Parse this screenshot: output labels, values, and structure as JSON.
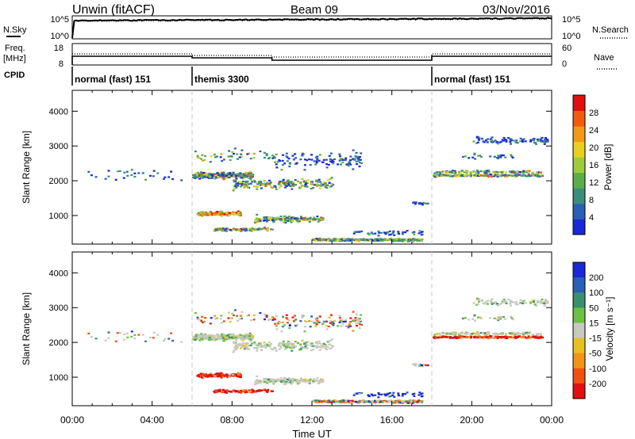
{
  "header": {
    "radar": "Unwin (fitACF)",
    "beam": "Beam 09",
    "date": "03/Nov/2016"
  },
  "noise_panel": {
    "left_label": "N.Sky",
    "right_label": "N.Search",
    "ticks_left": [
      "10^5",
      "10^0"
    ],
    "ticks_right": [
      "10^5",
      "10^0"
    ]
  },
  "freq_panel": {
    "left_label_line1": "Freq.",
    "left_label_line2": "[MHz]",
    "right_label": "Nave",
    "ticks_left": [
      "18",
      "8"
    ],
    "ticks_right": [
      "60",
      "0"
    ]
  },
  "cpid": {
    "label": "CPID",
    "segments": [
      {
        "name": "normal (fast) 151",
        "start": 0,
        "end": 6
      },
      {
        "name": "themis 3300",
        "start": 6,
        "end": 18
      },
      {
        "name": "normal (fast) 151",
        "start": 18,
        "end": 24
      }
    ]
  },
  "colors": {
    "power": [
      "#1a28d8",
      "#2a5fb4",
      "#3a8f7a",
      "#5aae4a",
      "#9ccc3c",
      "#e8d020",
      "#f29a18",
      "#f25a10",
      "#e01010"
    ],
    "velocity": [
      "#1a28d8",
      "#2a5fb4",
      "#3a8f6e",
      "#6cc043",
      "#c8c8c0",
      "#e8c020",
      "#f29418",
      "#f05010",
      "#e01010"
    ]
  },
  "chart_data": [
    {
      "type": "heatmap",
      "name": "power",
      "ylabel": "Slant Range [km]",
      "ylim": [
        180,
        4600
      ],
      "xlim": [
        0,
        24
      ],
      "yticks": [
        "1000",
        "2000",
        "3000",
        "4000"
      ],
      "colorbar_label": "Power [dB]",
      "colorbar_ticks": [
        "4",
        "8",
        "12",
        "16",
        "20",
        "24",
        "28"
      ],
      "colorbar_range": [
        0,
        32
      ]
    },
    {
      "type": "heatmap",
      "name": "velocity",
      "ylabel": "Slant Range [km]",
      "ylim": [
        180,
        4600
      ],
      "xlim": [
        0,
        24
      ],
      "yticks": [
        "1000",
        "2000",
        "3000",
        "4000"
      ],
      "colorbar_label": "Velocity [m s⁻¹]",
      "colorbar_ticks": [
        "200",
        "100",
        "50",
        "15",
        "-15",
        "-50",
        "-100",
        "-200"
      ]
    }
  ],
  "xaxis": {
    "label": "Time UT",
    "ticks": [
      "00:00",
      "04:00",
      "08:00",
      "12:00",
      "16:00",
      "20:00",
      "00:00"
    ]
  }
}
